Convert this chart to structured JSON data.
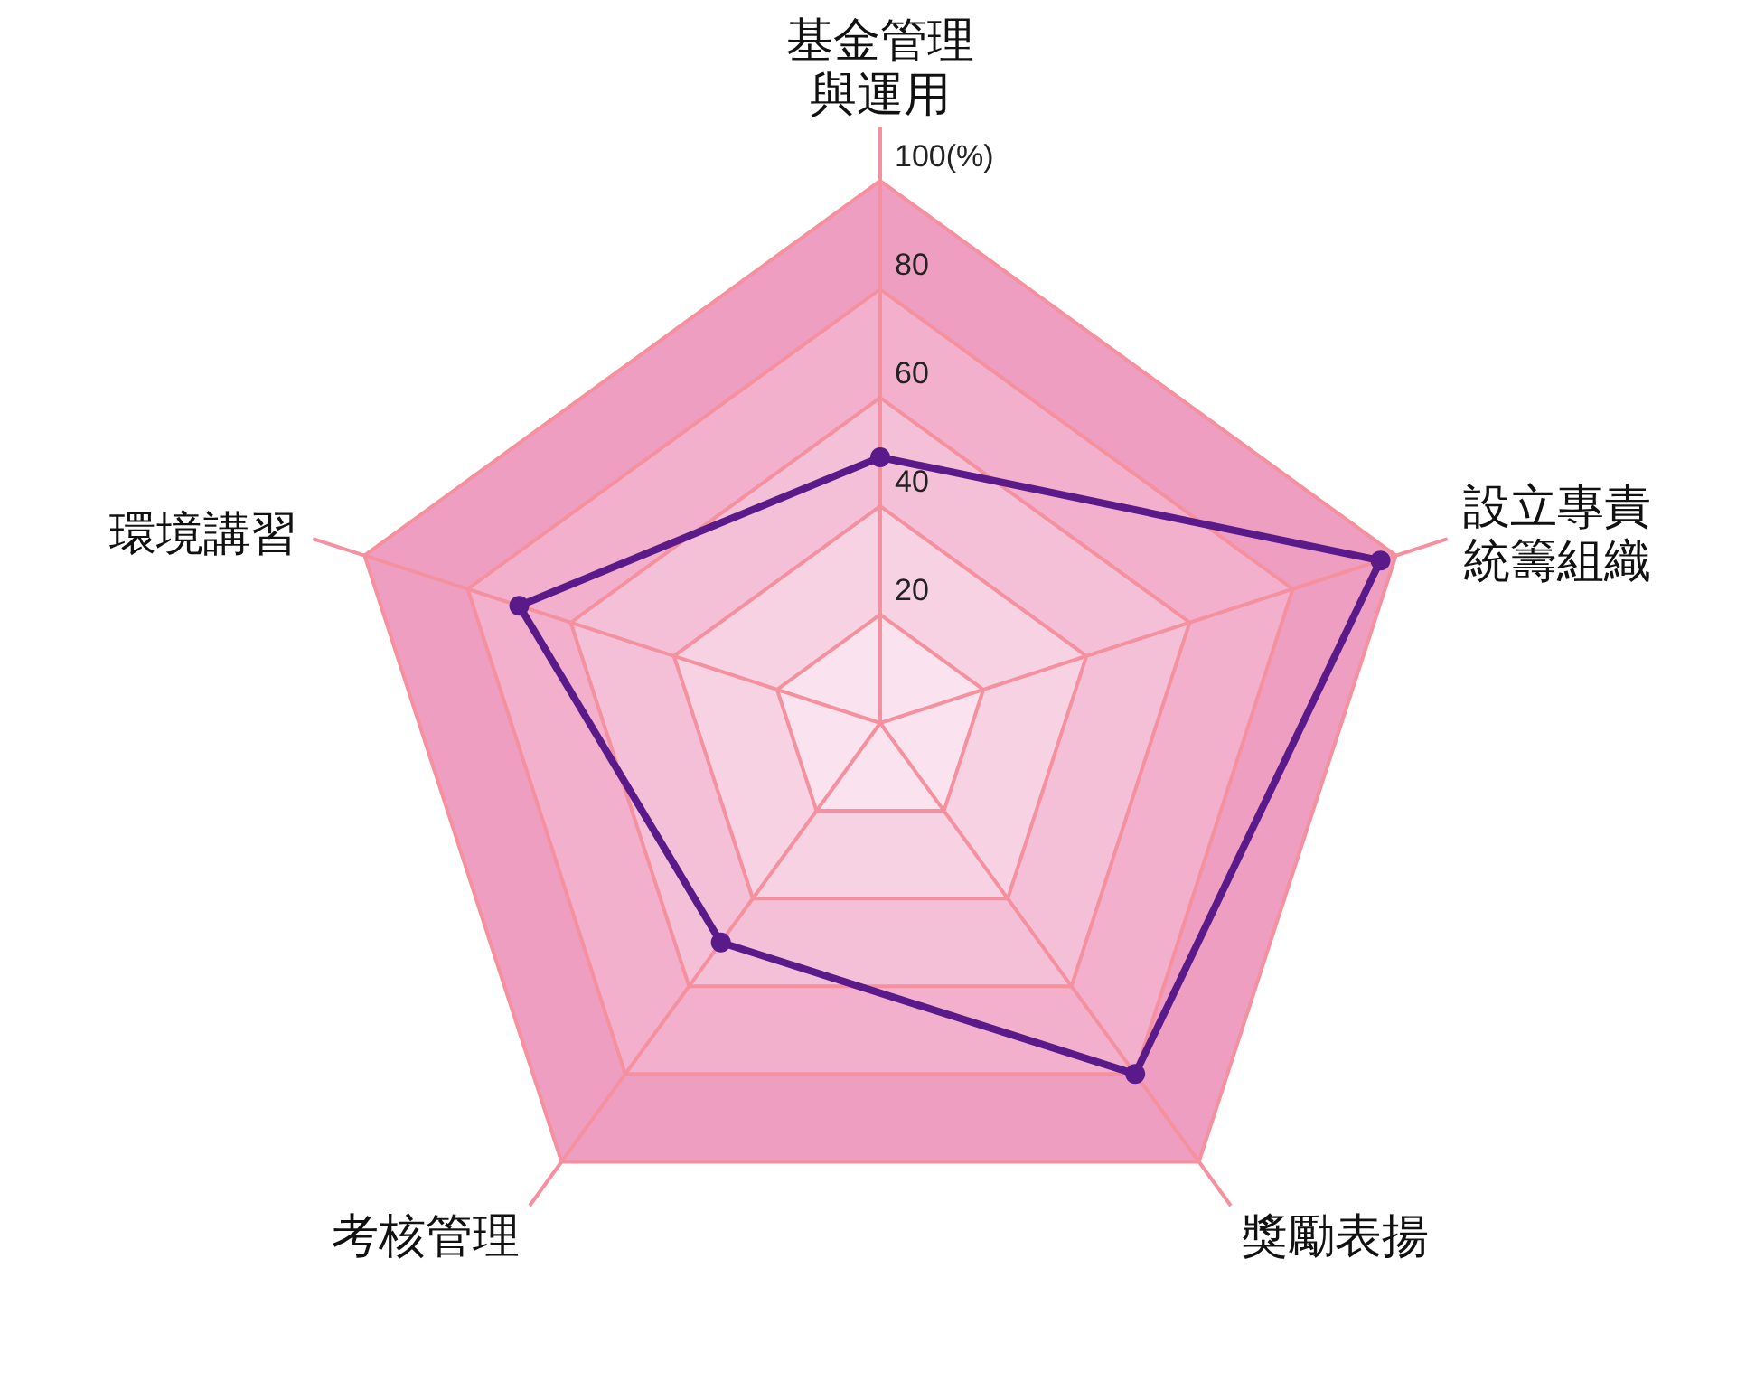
{
  "chart_data": {
    "type": "radar",
    "categories": [
      "基金管理與運用",
      "設立專責統籌組織",
      "獎勵表揚",
      "考核管理",
      "環境講習"
    ],
    "series": [
      {
        "color": "#5a1a8a",
        "values": [
          49,
          97,
          80,
          50,
          70
        ]
      }
    ],
    "ylim": [
      0,
      100
    ],
    "yticks": [
      20,
      40,
      60,
      80,
      {
        "value": 100,
        "label": "100(%)"
      }
    ],
    "grid": true,
    "marker": "circle",
    "line_style": "solid"
  }
}
